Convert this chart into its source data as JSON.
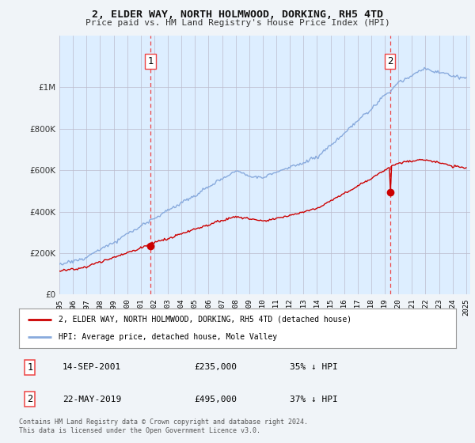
{
  "title": "2, ELDER WAY, NORTH HOLMWOOD, DORKING, RH5 4TD",
  "subtitle": "Price paid vs. HM Land Registry's House Price Index (HPI)",
  "legend_line1": "2, ELDER WAY, NORTH HOLMWOOD, DORKING, RH5 4TD (detached house)",
  "legend_line2": "HPI: Average price, detached house, Mole Valley",
  "sale1_label": "1",
  "sale1_date": "14-SEP-2001",
  "sale1_price": "£235,000",
  "sale1_hpi": "35% ↓ HPI",
  "sale2_label": "2",
  "sale2_date": "22-MAY-2019",
  "sale2_price": "£495,000",
  "sale2_hpi": "37% ↓ HPI",
  "footer": "Contains HM Land Registry data © Crown copyright and database right 2024.\nThis data is licensed under the Open Government Licence v3.0.",
  "hpi_color": "#88aadd",
  "price_color": "#cc0000",
  "marker_color": "#cc0000",
  "vline_color": "#ee4444",
  "shade_color": "#ddeeff",
  "background_color": "#f0f4f8",
  "plot_bg_color": "#ddeeff",
  "ylim": [
    0,
    1250000
  ],
  "yticks": [
    0,
    200000,
    400000,
    600000,
    800000,
    1000000
  ],
  "sale1_year": 2001.71,
  "sale2_year": 2019.38,
  "sale1_price_val": 235000,
  "sale2_price_val": 495000
}
